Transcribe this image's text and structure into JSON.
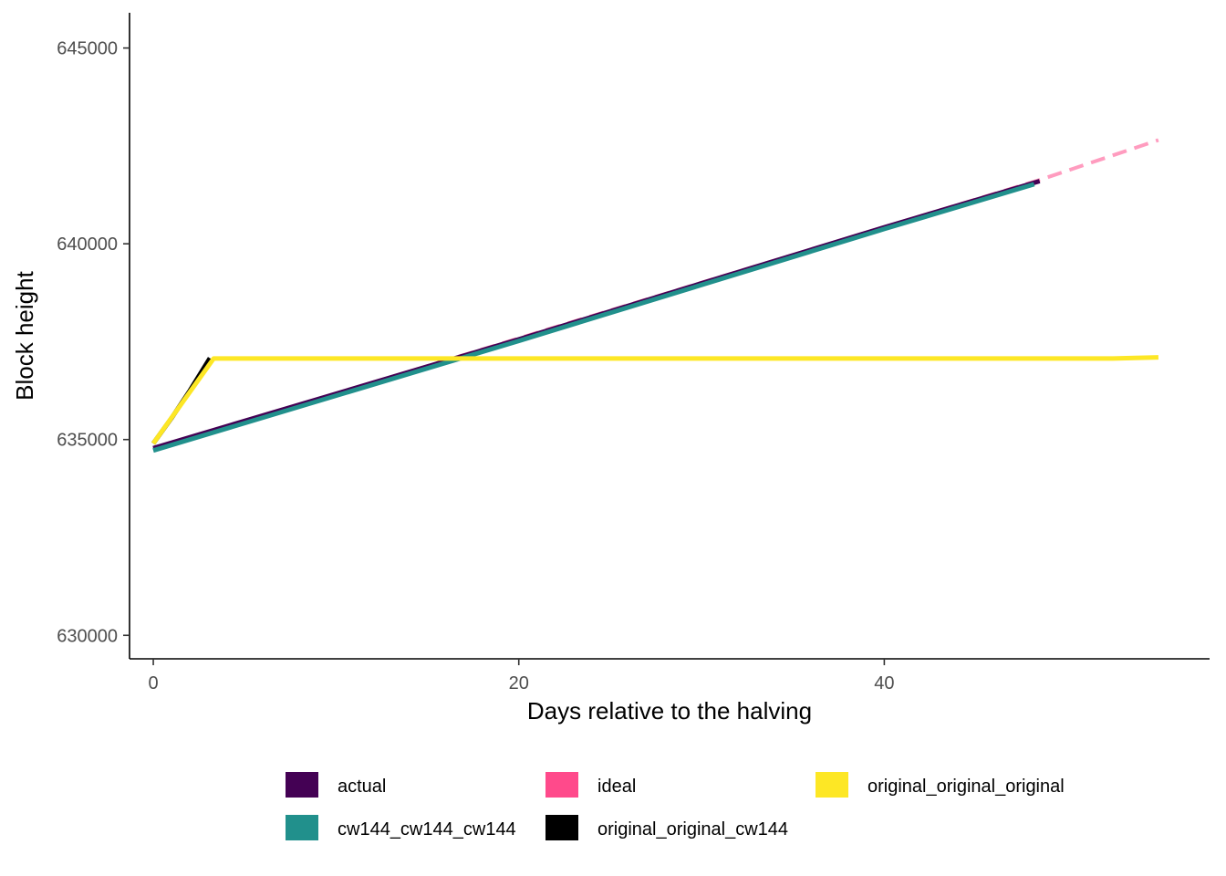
{
  "chart_data": {
    "type": "line",
    "title": "",
    "xlabel": "Days relative to the halving",
    "ylabel": "Block height",
    "xlim": [
      -1.3,
      57.8
    ],
    "ylim": [
      629400,
      645900
    ],
    "x_ticks": [
      0,
      20,
      40
    ],
    "y_ticks": [
      630000,
      635000,
      640000,
      645000
    ],
    "x_tick_labels": [
      "0",
      "20",
      "40"
    ],
    "y_tick_labels": [
      "630000",
      "635000",
      "640000",
      "645000"
    ],
    "grid": false,
    "legend_position": "bottom",
    "series": [
      {
        "name": "ideal",
        "color": "#ff4a8b",
        "dash": "dashed",
        "x": [
          0,
          48.5,
          55
        ],
        "y": [
          634750,
          641630,
          642650
        ]
      },
      {
        "name": "actual",
        "color": "#440154",
        "dash": "solid",
        "x": [
          0,
          20,
          40,
          48.5
        ],
        "y": [
          634780,
          637560,
          640420,
          641600
        ]
      },
      {
        "name": "original_original_cw144",
        "color": "#000000",
        "dash": "solid",
        "x": [
          0,
          1,
          2,
          3.1
        ],
        "y": [
          634900,
          635550,
          636250,
          637080
        ]
      },
      {
        "name": "cw144_cw144_cw144",
        "color": "#21908c",
        "dash": "solid",
        "x": [
          0,
          20,
          40,
          48.2
        ],
        "y": [
          634720,
          637520,
          640380,
          641520
        ]
      },
      {
        "name": "original_original_original",
        "color": "#fde725",
        "dash": "solid",
        "x": [
          0,
          3.3,
          52.5,
          55
        ],
        "y": [
          634900,
          637070,
          637070,
          637100
        ]
      }
    ],
    "legend": [
      {
        "label": "actual",
        "color": "#440154"
      },
      {
        "label": "ideal",
        "color": "#ff4a8b"
      },
      {
        "label": "original_original_original",
        "color": "#fde725"
      },
      {
        "label": "cw144_cw144_cw144",
        "color": "#21908c"
      },
      {
        "label": "original_original_cw144",
        "color": "#000000"
      }
    ]
  }
}
